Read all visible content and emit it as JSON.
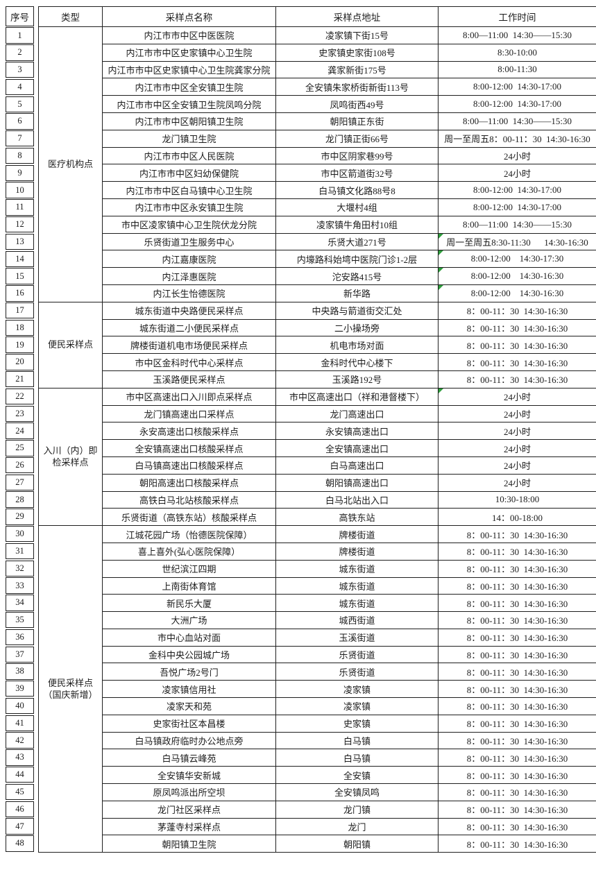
{
  "accent": {
    "flag_color": "#2e9e3c",
    "border_color": "#1e1e1e"
  },
  "table": {
    "headers": {
      "seq": "序号",
      "type": "类型",
      "name": "采样点名称",
      "addr": "采样点地址",
      "time": "工作时间"
    },
    "groups": [
      {
        "type": "医疗机构点",
        "rows": [
          {
            "no": "1",
            "name": "内江市市中区中医医院",
            "addr": "凌家镇下街15号",
            "time": "8:00—11:00  14:30——15:30"
          },
          {
            "no": "2",
            "name": "内江市市中区史家镇中心卫生院",
            "addr": "史家镇史家街108号",
            "time": "8:30-10:00"
          },
          {
            "no": "3",
            "name": "内江市市中区史家镇中心卫生院龚家分院",
            "addr": "龚家新街175号",
            "time": "8:00-11:30"
          },
          {
            "no": "4",
            "name": "内江市市中区全安镇卫生院",
            "addr": "全安镇朱家桥街新街113号",
            "time": "8:00-12:00  14:30-17:00"
          },
          {
            "no": "5",
            "name": "内江市市中区全安镇卫生院凤鸣分院",
            "addr": "凤鸣街西49号",
            "time": "8:00-12:00  14:30-17:00"
          },
          {
            "no": "6",
            "name": "内江市市中区朝阳镇卫生院",
            "addr": "朝阳镇正东街",
            "time": "8:00—11:00  14:30——15:30"
          },
          {
            "no": "7",
            "name": "龙门镇卫生院",
            "addr": "龙门镇正街66号",
            "time": "周一至周五8：00-11：30  14:30-16:30"
          },
          {
            "no": "8",
            "name": "内江市市中区人民医院",
            "addr": "市中区阴家巷99号",
            "time": "24小时"
          },
          {
            "no": "9",
            "name": "内江市市中区妇幼保健院",
            "addr": "市中区箭道街32号",
            "time": "24小时"
          },
          {
            "no": "10",
            "name": "内江市市中区白马镇中心卫生院",
            "addr": "白马镇文化路88号8",
            "time": "8:00-12:00  14:30-17:00"
          },
          {
            "no": "11",
            "name": "内江市市中区永安镇卫生院",
            "addr": "大堰村4组",
            "time": "8:00-12:00  14:30-17:00"
          },
          {
            "no": "12",
            "name": "市中区凌家镇中心卫生院伏龙分院",
            "addr": "凌家镇牛角田村10组",
            "time": "8:00—11:00  14:30——15:30"
          },
          {
            "no": "13",
            "name": "乐贤街道卫生服务中心",
            "addr": "乐贤大道271号",
            "time": "周一至周五8:30-11:30      14:30-16:30",
            "flag": true
          },
          {
            "no": "14",
            "name": "内江嘉康医院",
            "addr": "内壕路科始塆中医院门诊1-2层",
            "time": "8:00-12:00    14:30-17:30",
            "flag": true
          },
          {
            "no": "15",
            "name": "内江泽惠医院",
            "addr": "沱安路415号",
            "time": "8:00-12:00    14:30-16:30",
            "flag": true
          },
          {
            "no": "16",
            "name": "内江长生怡德医院",
            "addr": "新华路",
            "time": "8:00-12:00    14:30-16:30",
            "flag": true
          }
        ]
      },
      {
        "type": "便民采样点",
        "rows": [
          {
            "no": "17",
            "name": "城东街道中央路便民采样点",
            "addr": "中央路与箭道街交汇处",
            "time": "8：00-11：30  14:30-16:30"
          },
          {
            "no": "18",
            "name": "城东街道二小便民采样点",
            "addr": "二小操场旁",
            "time": "8：00-11：30  14:30-16:30"
          },
          {
            "no": "19",
            "name": "牌楼街道机电市场便民采样点",
            "addr": "机电市场对面",
            "time": "8：00-11：30  14:30-16:30"
          },
          {
            "no": "20",
            "name": "市中区金科时代中心采样点",
            "addr": "金科时代中心楼下",
            "time": "8：00-11：30  14:30-16:30"
          },
          {
            "no": "21",
            "name": "玉溪路便民采样点",
            "addr": "玉溪路192号",
            "time": "8：00-11：30  14:30-16:30"
          }
        ]
      },
      {
        "type": "入川（内）即检采样点",
        "rows": [
          {
            "no": "22",
            "name": "市中区高速出口入川即点采样点",
            "addr": "市中区高速出口（祥和港督楼下）",
            "time": "24小时",
            "flag": true
          },
          {
            "no": "23",
            "name": "龙门镇高速出口采样点",
            "addr": "龙门高速出口",
            "time": "24小时"
          },
          {
            "no": "24",
            "name": "永安高速出口核酸采样点",
            "addr": "永安镇高速出口",
            "time": "24小时"
          },
          {
            "no": "25",
            "name": "全安镇高速出口核酸采样点",
            "addr": "全安镇高速出口",
            "time": "24小时"
          },
          {
            "no": "26",
            "name": "白马镇高速出口核酸采样点",
            "addr": "白马高速出口",
            "time": "24小时"
          },
          {
            "no": "27",
            "name": "朝阳高速出口核酸采样点",
            "addr": "朝阳镇高速出口",
            "time": "24小时"
          },
          {
            "no": "28",
            "name": "高铁白马北站核酸采样点",
            "addr": "白马北站出入口",
            "time": "10:30-18:00"
          },
          {
            "no": "29",
            "name": "乐贤街道（高铁东站）核酸采样点",
            "addr": "高铁东站",
            "time": "14：00-18:00"
          }
        ]
      },
      {
        "type": "便民采样点（国庆新增）",
        "rows": [
          {
            "no": "30",
            "name": "江城花园广场（怡德医院保障）",
            "addr": "牌楼街道",
            "time": "8：00-11：30  14:30-16:30"
          },
          {
            "no": "31",
            "name": "喜上喜外(弘心医院保障）",
            "addr": "牌楼街道",
            "time": "8：00-11：30  14:30-16:30"
          },
          {
            "no": "32",
            "name": "世纪滨江四期",
            "addr": "城东街道",
            "time": "8：00-11：30  14:30-16:30"
          },
          {
            "no": "33",
            "name": "上南街体育馆",
            "addr": "城东街道",
            "time": "8：00-11：30  14:30-16:30"
          },
          {
            "no": "34",
            "name": "新民乐大厦",
            "addr": "城东街道",
            "time": "8：00-11：30  14:30-16:30"
          },
          {
            "no": "35",
            "name": "大洲广场",
            "addr": "城西街道",
            "time": "8：00-11：30  14:30-16:30"
          },
          {
            "no": "36",
            "name": "市中心血站对面",
            "addr": "玉溪街道",
            "time": "8：00-11：30  14:30-16:30"
          },
          {
            "no": "37",
            "name": "金科中央公园城广场",
            "addr": "乐贤街道",
            "time": "8：00-11：30  14:30-16:30"
          },
          {
            "no": "38",
            "name": "吾悦广场2号门",
            "addr": "乐贤街道",
            "time": "8：00-11：30  14:30-16:30"
          },
          {
            "no": "39",
            "name": "凌家镇信用社",
            "addr": "凌家镇",
            "time": "8：00-11：30  14:30-16:30"
          },
          {
            "no": "40",
            "name": "凌家天和苑",
            "addr": "凌家镇",
            "time": "8：00-11：30  14:30-16:30"
          },
          {
            "no": "41",
            "name": "史家街社区本昌楼",
            "addr": "史家镇",
            "time": "8：00-11：30  14:30-16:30"
          },
          {
            "no": "42",
            "name": "白马镇政府临时办公地点旁",
            "addr": "白马镇",
            "time": "8：00-11：30  14:30-16:30"
          },
          {
            "no": "43",
            "name": "白马镇云峰苑",
            "addr": "白马镇",
            "time": "8：00-11：30  14:30-16:30"
          },
          {
            "no": "44",
            "name": "全安镇华安新城",
            "addr": "全安镇",
            "time": "8：00-11：30  14:30-16:30"
          },
          {
            "no": "45",
            "name": "原凤鸣派出所空坝",
            "addr": "全安镇凤鸣",
            "time": "8：00-11：30  14:30-16:30"
          },
          {
            "no": "46",
            "name": "龙门社区采样点",
            "addr": "龙门镇",
            "time": "8：00-11：30  14:30-16:30"
          },
          {
            "no": "47",
            "name": "茅蓬寺村采样点",
            "addr": "龙门",
            "time": "8：00-11：30  14:30-16:30"
          },
          {
            "no": "48",
            "name": "朝阳镇卫生院",
            "addr": "朝阳镇",
            "time": "8：00-11：30  14:30-16:30"
          }
        ]
      }
    ]
  }
}
